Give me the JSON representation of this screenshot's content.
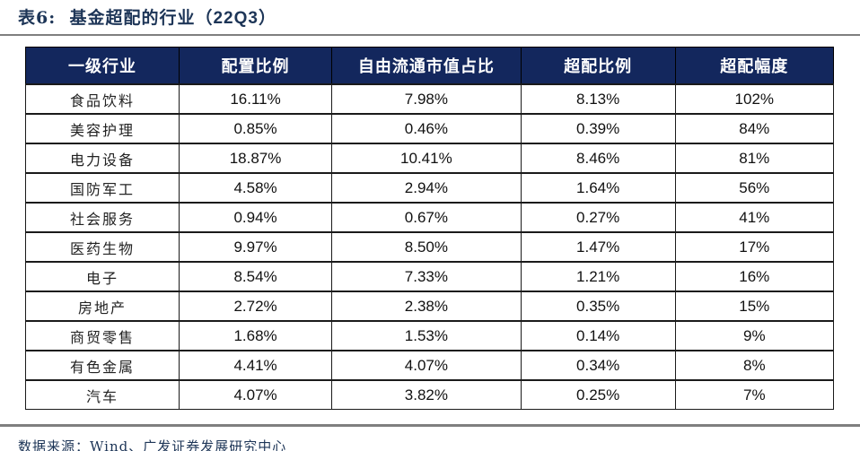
{
  "caption": {
    "label": "表6:",
    "text": "基金超配的行业（",
    "quarter": "22Q3",
    "close_paren": "）"
  },
  "colors": {
    "header_background": "#13275d",
    "header_text": "#ffffff",
    "title_text": "#1d3557",
    "body_text": "#111111",
    "table_border": "#1a1a1a",
    "rule_gray": "#7f7f7f",
    "page_background": "#ffffff"
  },
  "chart_data": {
    "type": "table",
    "title": "表6: 基金超配的行业（22Q3）",
    "columns": [
      "一级行业",
      "配置比例",
      "自由流通市值占比",
      "超配比例",
      "超配幅度"
    ],
    "rows": [
      [
        "食品饮料",
        "16.11%",
        "7.98%",
        "8.13%",
        "102%"
      ],
      [
        "美容护理",
        "0.85%",
        "0.46%",
        "0.39%",
        "84%"
      ],
      [
        "电力设备",
        "18.87%",
        "10.41%",
        "8.46%",
        "81%"
      ],
      [
        "国防军工",
        "4.58%",
        "2.94%",
        "1.64%",
        "56%"
      ],
      [
        "社会服务",
        "0.94%",
        "0.67%",
        "0.27%",
        "41%"
      ],
      [
        "医药生物",
        "9.97%",
        "8.50%",
        "1.47%",
        "17%"
      ],
      [
        "电子",
        "8.54%",
        "7.33%",
        "1.21%",
        "16%"
      ],
      [
        "房地产",
        "2.72%",
        "2.38%",
        "0.35%",
        "15%"
      ],
      [
        "商贸零售",
        "1.68%",
        "1.53%",
        "0.14%",
        "9%"
      ],
      [
        "有色金属",
        "4.41%",
        "4.07%",
        "0.34%",
        "8%"
      ],
      [
        "汽车",
        "4.07%",
        "3.82%",
        "0.25%",
        "7%"
      ]
    ]
  },
  "footer": {
    "source": "数据来源：Wind、广发证券发展研究中心"
  }
}
